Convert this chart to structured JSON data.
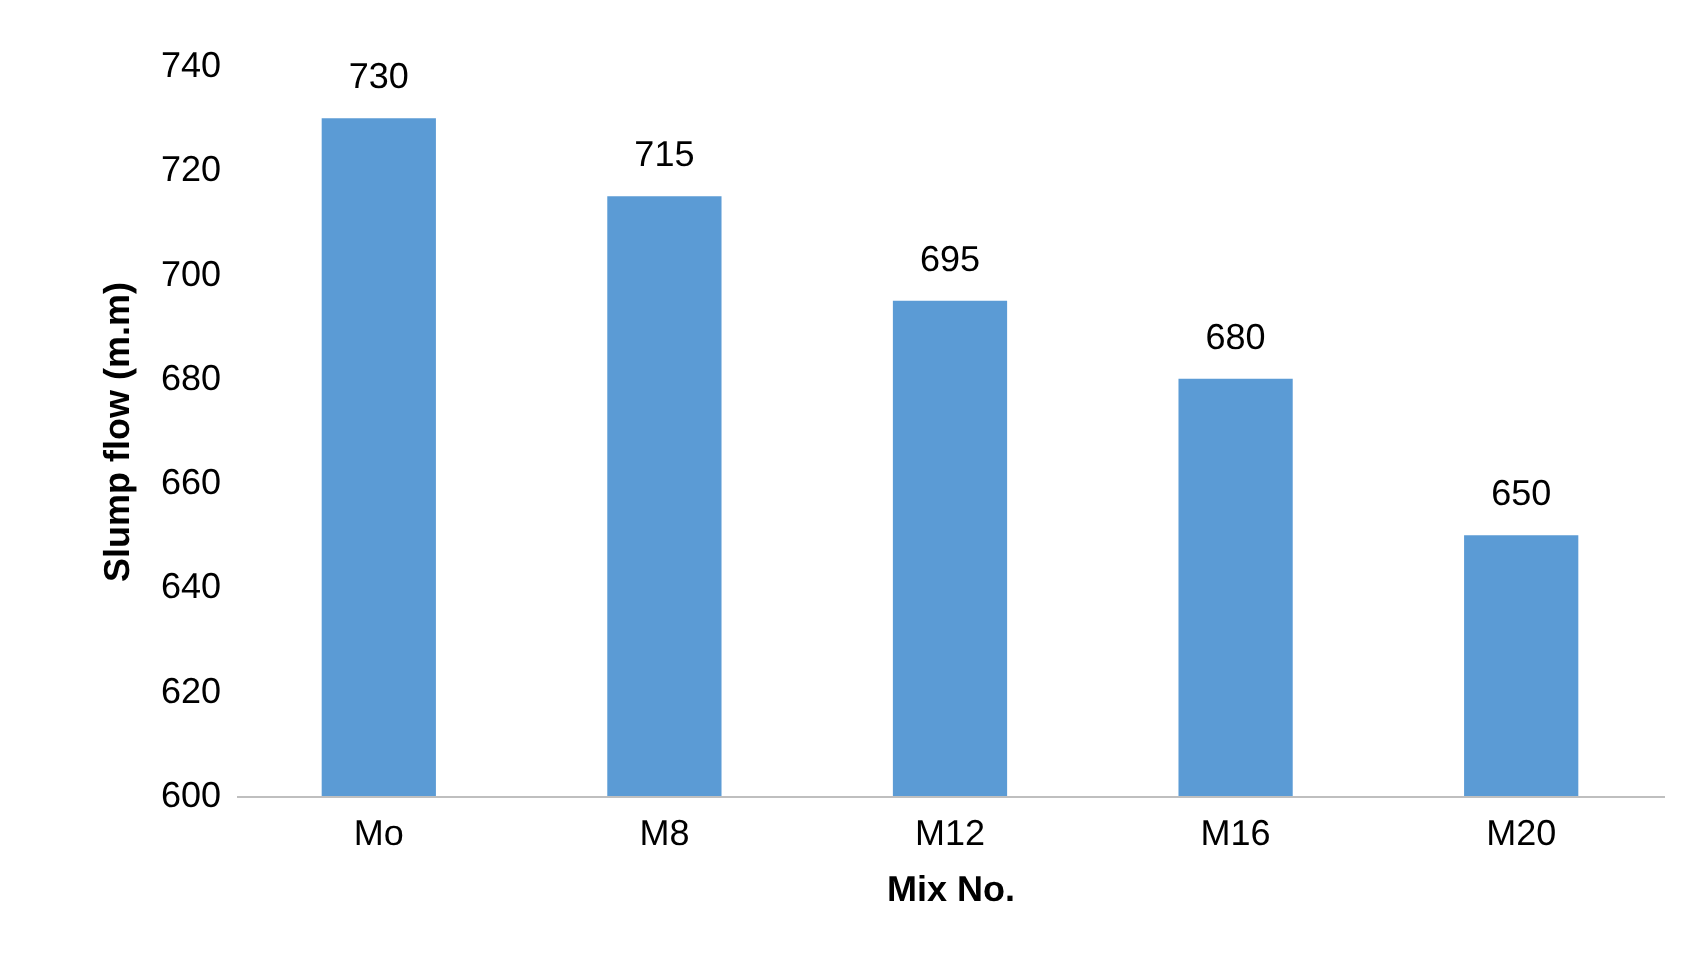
{
  "chart_data": {
    "type": "bar",
    "xlabel": "Mix No.",
    "ylabel": "Slump flow (m.m)",
    "categories": [
      "Mo",
      "M8",
      "M12",
      "M16",
      "M20"
    ],
    "values": [
      730,
      715,
      695,
      680,
      650
    ],
    "color": "#5b9bd5",
    "ylim": [
      600,
      740
    ],
    "yticks": [
      600,
      620,
      640,
      660,
      680,
      700,
      720,
      740
    ],
    "grid": false,
    "data_labels": true
  }
}
